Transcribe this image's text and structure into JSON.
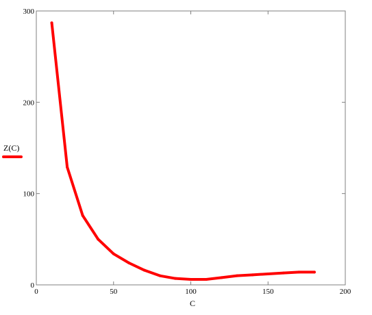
{
  "chart_data": {
    "type": "line",
    "xlabel": "C",
    "ylabel": "",
    "xlim": [
      0,
      200
    ],
    "ylim": [
      0,
      300
    ],
    "x_ticks": [
      0,
      50,
      100,
      150,
      200
    ],
    "y_ticks": [
      0,
      100,
      200,
      300
    ],
    "x_tick_labels": [
      "0",
      "50",
      "100",
      "150",
      "200"
    ],
    "y_tick_labels": [
      "0",
      "100",
      "200",
      "300"
    ],
    "grid": false,
    "legend_position": "left",
    "series": [
      {
        "name": "Z(C)",
        "color": "#ff0000",
        "x": [
          10,
          20,
          30,
          40,
          50,
          60,
          70,
          80,
          90,
          100,
          110,
          120,
          130,
          140,
          150,
          160,
          170,
          180
        ],
        "values": [
          287,
          129,
          76,
          50,
          34,
          24,
          16,
          10,
          7,
          6,
          6,
          8,
          10,
          11,
          12,
          13,
          14,
          14
        ]
      }
    ]
  }
}
